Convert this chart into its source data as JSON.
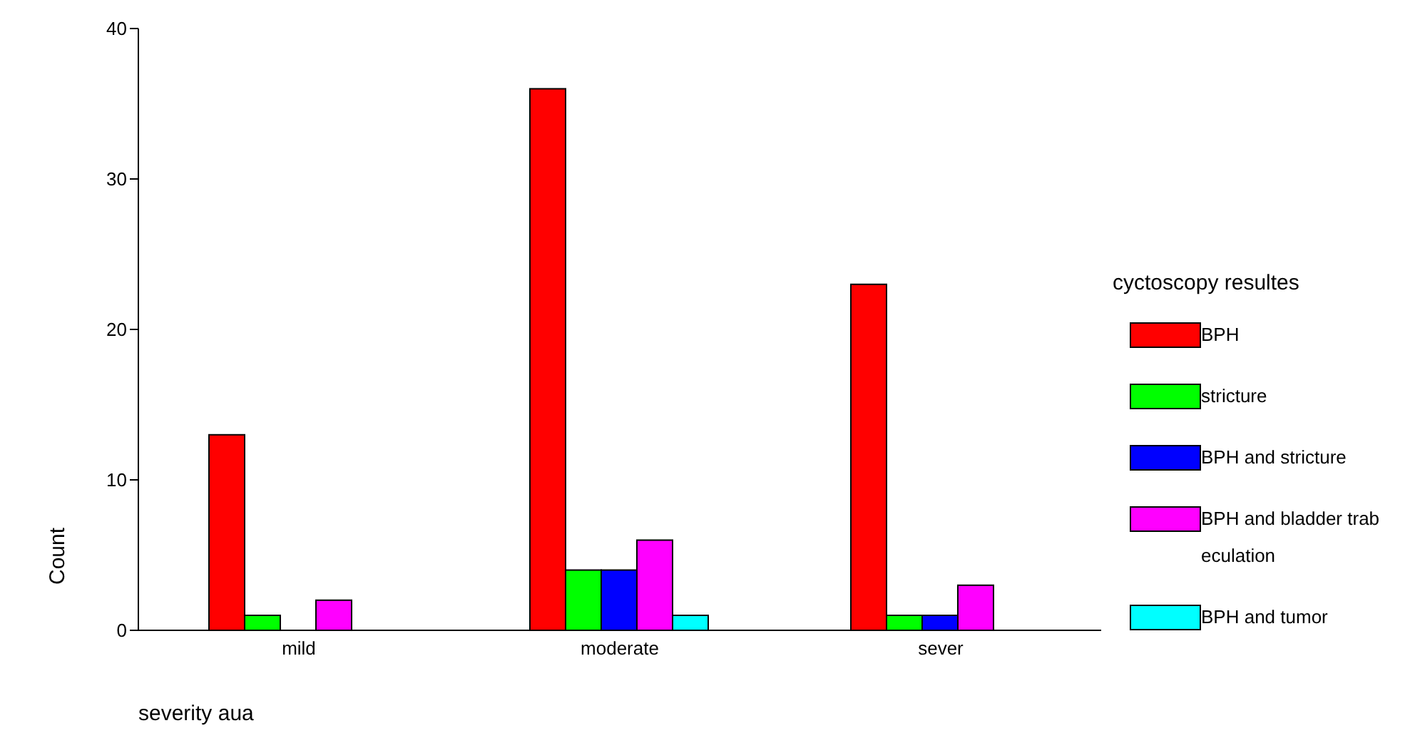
{
  "chart_data": {
    "type": "bar",
    "xlabel": "severity aua",
    "ylabel": "Count",
    "legend_title": "cyctoscopy resultes",
    "categories": [
      "mild",
      "moderate",
      "sever"
    ],
    "series": [
      {
        "name": "BPH",
        "color": "#ff0000",
        "values": [
          13,
          36,
          23
        ]
      },
      {
        "name": "stricture",
        "color": "#00ff00",
        "values": [
          1,
          4,
          1
        ]
      },
      {
        "name": "BPH and stricture",
        "color": "#0000ff",
        "values": [
          null,
          4,
          1
        ]
      },
      {
        "name": "BPH and bladder trabeculation",
        "color": "#ff00ff",
        "values": [
          2,
          6,
          3
        ]
      },
      {
        "name": "BPH and tumor",
        "color": "#00ffff",
        "values": [
          null,
          1,
          null
        ]
      }
    ],
    "ylim": [
      0,
      40
    ],
    "yticks": [
      0,
      10,
      20,
      30,
      40
    ],
    "grid": false,
    "legend": "right"
  }
}
